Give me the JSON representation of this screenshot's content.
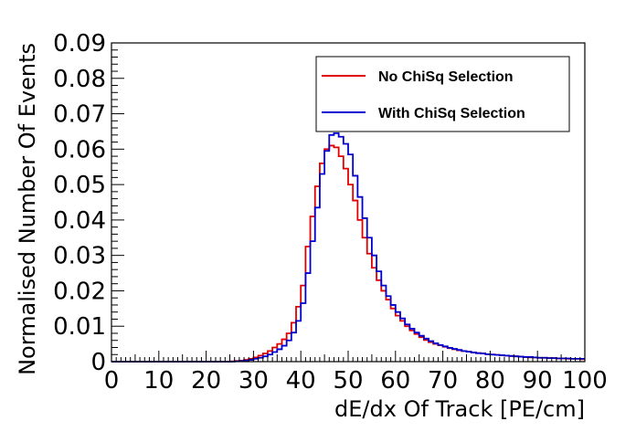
{
  "chart_data": {
    "type": "line",
    "style": "histogram-step",
    "xlabel": "dE/dx Of Track [PE/cm]",
    "ylabel": "Normalised Number Of Events",
    "xlim": [
      0,
      100
    ],
    "ylim": [
      0,
      0.09
    ],
    "x_ticks": [
      "0",
      "10",
      "20",
      "30",
      "40",
      "50",
      "60",
      "70",
      "80",
      "90",
      "100"
    ],
    "y_ticks": [
      "0",
      "0.01",
      "0.02",
      "0.03",
      "0.04",
      "0.05",
      "0.06",
      "0.07",
      "0.08",
      "0.09"
    ],
    "bin_width": 1,
    "grid": false,
    "legend_position": "top-right",
    "series": [
      {
        "name": "No ChiSq Selection",
        "color": "#e00000",
        "values": [
          0,
          0,
          0,
          0,
          0,
          0,
          0,
          0,
          0,
          0,
          0,
          0,
          0,
          0,
          0,
          0,
          0,
          0,
          0,
          0,
          0,
          0,
          0,
          0,
          0,
          0.0001,
          0.0002,
          0.0003,
          0.0005,
          0.0008,
          0.0012,
          0.0017,
          0.0023,
          0.003,
          0.004,
          0.005,
          0.0063,
          0.008,
          0.011,
          0.0155,
          0.0215,
          0.0325,
          0.041,
          0.0495,
          0.056,
          0.06,
          0.061,
          0.0605,
          0.058,
          0.0545,
          0.05,
          0.0455,
          0.04,
          0.035,
          0.0305,
          0.0265,
          0.023,
          0.02,
          0.0175,
          0.015,
          0.013,
          0.0115,
          0.01,
          0.0088,
          0.0078,
          0.0069,
          0.0061,
          0.0055,
          0.005,
          0.0046,
          0.0042,
          0.0038,
          0.0035,
          0.0032,
          0.003,
          0.0028,
          0.0026,
          0.0024,
          0.0023,
          0.0021,
          0.002,
          0.0019,
          0.0018,
          0.0017,
          0.0016,
          0.0015,
          0.0014,
          0.0013,
          0.0012,
          0.0012,
          0.0011,
          0.0011,
          0.001,
          0.001,
          0.0009,
          0.0009,
          0.0008,
          0.0008,
          0.0008,
          0.0007
        ]
      },
      {
        "name": "With ChiSq Selection",
        "color": "#0000d0",
        "values": [
          0,
          0,
          0,
          0,
          0,
          0,
          0,
          0,
          0,
          0,
          0,
          0,
          0,
          0,
          0,
          0,
          0,
          0,
          0,
          0,
          0,
          0,
          0,
          0,
          0,
          0,
          0.0001,
          0.0002,
          0.0003,
          0.0005,
          0.0008,
          0.0011,
          0.0015,
          0.002,
          0.0027,
          0.0035,
          0.0045,
          0.006,
          0.0082,
          0.0115,
          0.0165,
          0.025,
          0.034,
          0.0435,
          0.053,
          0.0595,
          0.064,
          0.0645,
          0.0635,
          0.0615,
          0.0585,
          0.0525,
          0.0465,
          0.0405,
          0.035,
          0.03,
          0.0255,
          0.0215,
          0.0185,
          0.016,
          0.014,
          0.0122,
          0.0105,
          0.0093,
          0.0082,
          0.0073,
          0.0065,
          0.0058,
          0.0052,
          0.0047,
          0.0043,
          0.0039,
          0.0036,
          0.0033,
          0.003,
          0.0028,
          0.0026,
          0.0024,
          0.0023,
          0.0021,
          0.002,
          0.0019,
          0.0018,
          0.0017,
          0.0016,
          0.0015,
          0.0014,
          0.0013,
          0.0013,
          0.0012,
          0.0011,
          0.0011,
          0.001,
          0.001,
          0.0009,
          0.0009,
          0.0009,
          0.0008,
          0.0008,
          0.0008
        ]
      }
    ]
  }
}
